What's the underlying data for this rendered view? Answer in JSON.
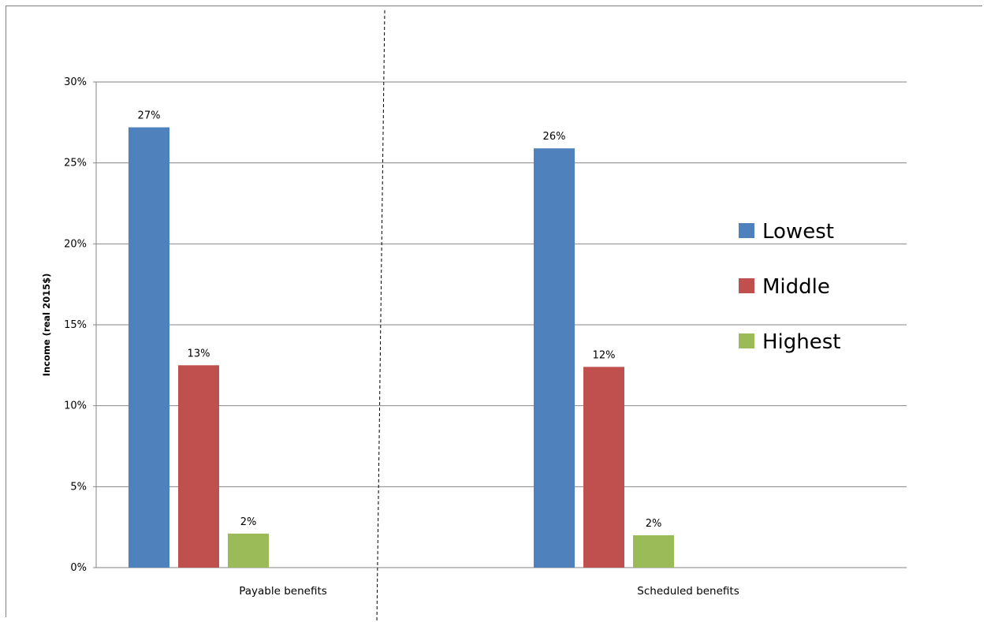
{
  "chart_data": {
    "type": "bar",
    "title": "",
    "xlabel": "",
    "ylabel": "Income (real 2015$)",
    "ylim": [
      0,
      30
    ],
    "y_unit": "%",
    "yticks": [
      "0%",
      "5%",
      "10%",
      "15%",
      "20%",
      "25%",
      "30%"
    ],
    "grid": true,
    "legend_position": "right",
    "categories": [
      "Payable benefits",
      "Scheduled benefits"
    ],
    "series": [
      {
        "name": "Lowest",
        "color": "#4F81BD",
        "values": [
          27.2,
          25.9
        ],
        "labels": [
          "27%",
          "26%"
        ]
      },
      {
        "name": "Middle",
        "color": "#C0504D",
        "values": [
          12.5,
          12.4
        ],
        "labels": [
          "13%",
          "12%"
        ]
      },
      {
        "name": "Highest",
        "color": "#9BBB59",
        "values": [
          2.1,
          2.0
        ],
        "labels": [
          "2%",
          "2%"
        ]
      }
    ]
  }
}
